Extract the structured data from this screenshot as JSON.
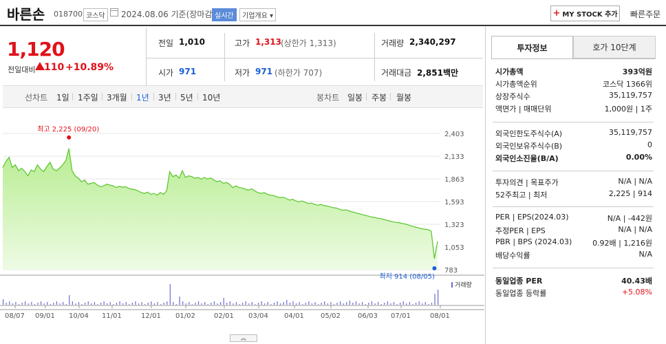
{
  "header": {
    "stock_name": "바른손",
    "stock_code": "018700",
    "market": "코스닥",
    "date_text": "2024.08.06 기준(장마감)",
    "realtime_label": "실시간",
    "overview_label": "기업개요",
    "mystock_label": "MY STOCK 추가",
    "quick_order_label": "빠른주문"
  },
  "price": {
    "current": "1,120",
    "change_label": "전일대비",
    "change_value": "110",
    "change_pct": "+10.89%"
  },
  "quote": {
    "prev_label": "전일",
    "prev_value": "1,010",
    "high_label": "고가",
    "high_value": "1,313",
    "upper_limit": "(상한가 1,313)",
    "volume_label": "거래량",
    "volume_value": "2,340,297",
    "open_label": "시가",
    "open_value": "971",
    "low_label": "저가",
    "low_value": "971",
    "lower_limit": "(하한가 707)",
    "amount_label": "거래대금",
    "amount_value": "2,851",
    "amount_unit": "백만"
  },
  "chart_tabs": {
    "line_label": "선차트",
    "periods": [
      "1일",
      "1주일",
      "3개월",
      "1년",
      "3년",
      "5년",
      "10년"
    ],
    "active_period": "1년",
    "candle_label": "봉차트",
    "candle_periods": [
      "일봉",
      "주봉",
      "월봉"
    ]
  },
  "chart_data": {
    "type": "area",
    "y_ticks": [
      "2,403",
      "2,133",
      "1,863",
      "1,593",
      "1,323",
      "1,053",
      "783"
    ],
    "ylim": [
      783,
      2403
    ],
    "x_ticks": [
      "08/07",
      "09/01",
      "10/04",
      "11/01",
      "12/01",
      "01/02",
      "02/01",
      "03/04",
      "04/01",
      "05/02",
      "06/03",
      "07/01",
      "08/01"
    ],
    "max_label": "최고 2,225 (09/20)",
    "min_label": "최저 914 (08/05)",
    "volume_label": "거래량",
    "series": [
      {
        "values": [
          2000,
          2070,
          2120,
          2000,
          2030,
          1960,
          1990,
          1950,
          1900,
          1970,
          1950,
          2030,
          1980,
          1950,
          2010,
          2060,
          1980,
          1960,
          1990,
          2030,
          2080,
          2225,
          1960,
          1900,
          1870,
          1830,
          1850,
          1800,
          1810,
          1820,
          1790,
          1770,
          1780,
          1800,
          1790,
          1780,
          1760,
          1775,
          1765,
          1770,
          1750,
          1740,
          1735,
          1720,
          1700,
          1690,
          1705,
          1680,
          1690,
          1670,
          1700,
          1680,
          1720,
          1950,
          1890,
          1910,
          1870,
          1960,
          1880,
          1900,
          1890,
          1870,
          1880,
          1860,
          1880,
          1860,
          1875,
          1850,
          1830,
          1840,
          1810,
          1820,
          1800,
          1760,
          1780,
          1760,
          1755,
          1740,
          1730,
          1745,
          1720,
          1700,
          1690,
          1700,
          1680,
          1670,
          1665,
          1650,
          1640,
          1645,
          1630,
          1610,
          1620,
          1600,
          1590,
          1600,
          1585,
          1570,
          1575,
          1560,
          1550,
          1560,
          1545,
          1540,
          1530,
          1520,
          1515,
          1500,
          1490,
          1495,
          1480,
          1470,
          1460,
          1450,
          1440,
          1430,
          1420,
          1410,
          1405,
          1395,
          1390,
          1380,
          1370,
          1360,
          1350,
          1345,
          1340,
          1330,
          1325,
          1310,
          1300,
          1290,
          1280,
          1270,
          1265,
          1260,
          1240,
          914,
          1120
        ]
      }
    ]
  },
  "right_panel": {
    "tab_invest": "투자정보",
    "tab_hoga": "호가 10단계",
    "rows1": [
      {
        "label": "시가총액",
        "value": "393억원",
        "bold": true
      },
      {
        "label": "시가총액순위",
        "value": "코스닥 1366위"
      },
      {
        "label": "상장주식수",
        "value": "35,119,757"
      },
      {
        "label": "액면가 | 매매단위",
        "value": "1,000원 | 1주"
      }
    ],
    "rows2": [
      {
        "label": "외국인한도주식수(A)",
        "value": "35,119,757"
      },
      {
        "label": "외국인보유주식수(B)",
        "value": "0"
      },
      {
        "label": "외국인소진율(B/A)",
        "value": "0.00%",
        "bold": true
      }
    ],
    "rows3": [
      {
        "label": "투자의견 | 목표주가",
        "value": "N/A | N/A"
      },
      {
        "label": "52주최고 | 최저",
        "value": "2,225 | 914"
      }
    ],
    "rows4": [
      {
        "label": "PER | EPS(2024.03)",
        "value": "N/A | -442원"
      },
      {
        "label": "추정PER | EPS",
        "value": "N/A | N/A"
      },
      {
        "label": "PBR | BPS (2024.03)",
        "value": "0.92배 | 1,216원"
      },
      {
        "label": "배당수익률",
        "value": "N/A"
      }
    ],
    "rows5": [
      {
        "label": "동일업종 PER",
        "value": "40.43배",
        "bold": true
      },
      {
        "label": "동일업종 등락률",
        "value": "+5.08%",
        "red": true
      }
    ]
  },
  "colors": {
    "up": "#e0121a",
    "down": "#1a5fd6",
    "area": "#b7eb8f",
    "line": "#52c41a"
  }
}
